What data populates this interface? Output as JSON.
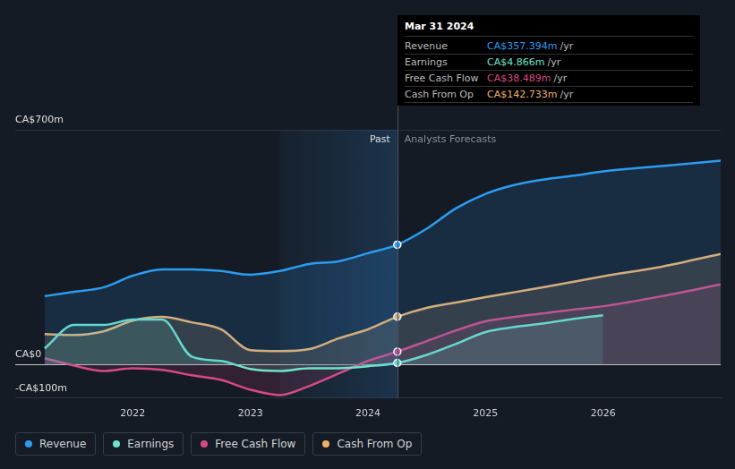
{
  "chart_data": {
    "type": "line",
    "x": [
      2021.25,
      2021.5,
      2021.75,
      2022,
      2022.25,
      2022.5,
      2022.75,
      2023,
      2023.25,
      2023.5,
      2023.75,
      2024,
      2024.25,
      2024.5,
      2024.75,
      2025,
      2025.25,
      2025.5,
      2025.75,
      2026,
      2026.5,
      2027
    ],
    "xlim": [
      2021,
      2027
    ],
    "xticks": [
      2022,
      2023,
      2024,
      2025,
      2026
    ],
    "ylim": [
      -100,
      700
    ],
    "yticks": [
      {
        "value": -100,
        "label": "-CA$100m"
      },
      {
        "value": 0,
        "label": "CA$0"
      },
      {
        "value": 700,
        "label": "CA$700m"
      }
    ],
    "grid": true,
    "legend": "bottom",
    "past_range": [
      2023.25,
      2024.25
    ],
    "annotations": [
      "Past",
      "Analysts Forecasts"
    ],
    "series": [
      {
        "name": "Revenue",
        "color": "#2c9cf0",
        "values": [
          204,
          217,
          230,
          265,
          284,
          284,
          279,
          268,
          279,
          300,
          308,
          332,
          357.394,
          405,
          466,
          509,
          536,
          552,
          563,
          576,
          592,
          608
        ]
      },
      {
        "name": "Earnings",
        "color": "#6fe3c9",
        "values": [
          48,
          118,
          118,
          134,
          134,
          24,
          11,
          -13,
          -19,
          -11,
          -11,
          -5,
          4.866,
          29,
          62,
          97,
          112,
          123,
          136,
          147,
          null,
          null
        ]
      },
      {
        "name": "Free Cash Flow",
        "color": "#d84a84",
        "values": [
          19,
          -3,
          -19,
          -11,
          -16,
          -32,
          -46,
          -75,
          -91,
          -64,
          -27,
          11,
          38.489,
          70,
          102,
          129,
          142,
          153,
          164,
          174,
          204,
          239
        ]
      },
      {
        "name": "Cash From Op",
        "color": "#f0b16a",
        "values": [
          91,
          88,
          99,
          131,
          142,
          126,
          105,
          43,
          40,
          46,
          78,
          105,
          142.733,
          169,
          185,
          201,
          216,
          231,
          247,
          263,
          292,
          330
        ]
      }
    ],
    "tooltip": {
      "title": "Mar 31 2024",
      "rows": [
        {
          "label": "Revenue",
          "value": "CA$357.394m",
          "unit": "/yr"
        },
        {
          "label": "Earnings",
          "value": "CA$4.866m",
          "unit": "/yr"
        },
        {
          "label": "Free Cash Flow",
          "value": "CA$38.489m",
          "unit": "/yr"
        },
        {
          "label": "Cash From Op",
          "value": "CA$142.733m",
          "unit": "/yr"
        }
      ]
    }
  }
}
